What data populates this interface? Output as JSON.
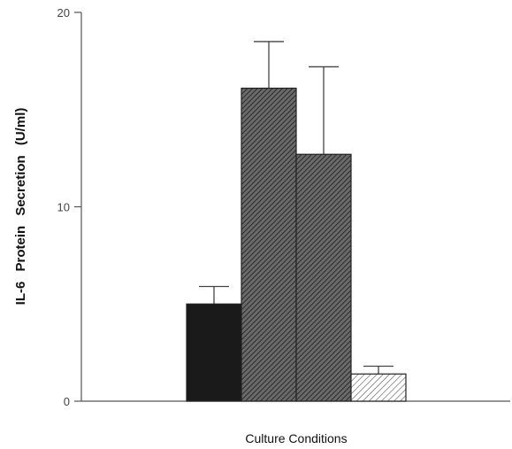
{
  "chart_data": {
    "type": "bar",
    "title": "",
    "xlabel": "Culture Conditions",
    "ylabel": "IL-6  Protein  Secretion  (U/ml)",
    "ylim": [
      0,
      20
    ],
    "yticks": [
      0,
      10,
      20
    ],
    "grid": false,
    "legend": "none",
    "bars": [
      {
        "value": 5.0,
        "error": 0.9,
        "fill": "solid",
        "color": "#1a1a1a"
      },
      {
        "value": 16.1,
        "error": 2.4,
        "fill": "dense-hatch",
        "color": "#4a4a4a"
      },
      {
        "value": 12.7,
        "error": 4.5,
        "fill": "dense-hatch",
        "color": "#4a4a4a"
      },
      {
        "value": 1.4,
        "error": 0.4,
        "fill": "light-hatch",
        "color": "#9a9a9a"
      }
    ]
  }
}
